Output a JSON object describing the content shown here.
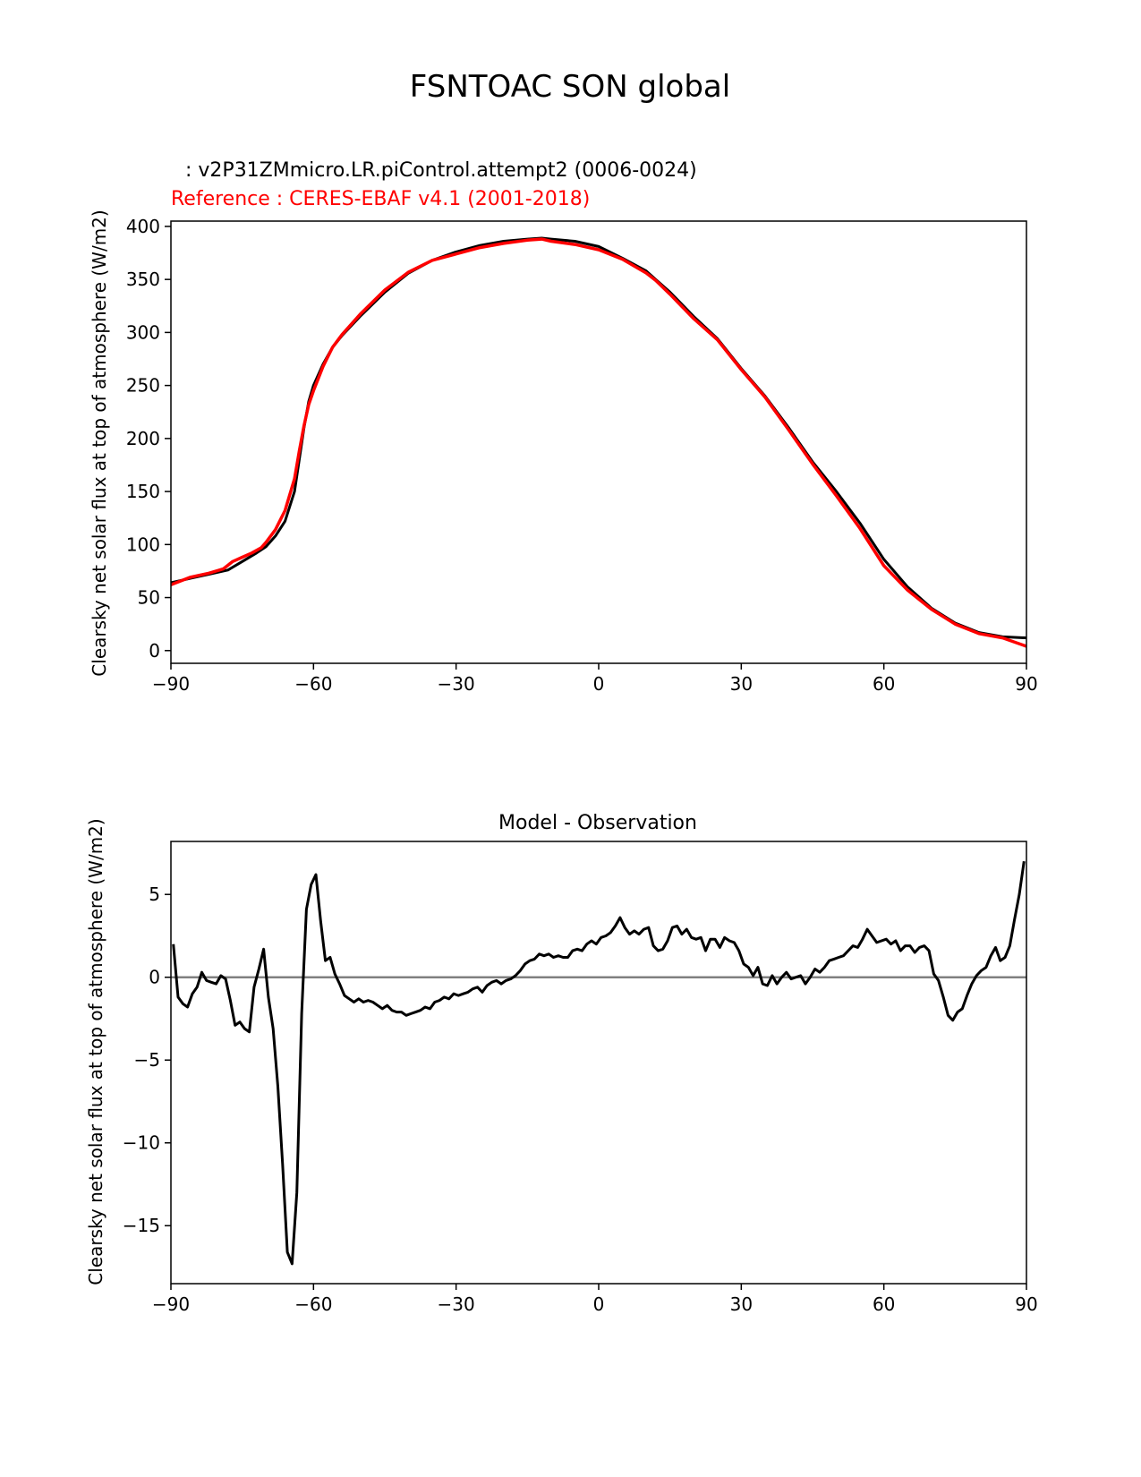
{
  "figure": {
    "title": "FSNTOAC SON global"
  },
  "chart_data": [
    {
      "type": "line",
      "test_label": ": v2P31ZMmicro.LR.piControl.attempt2 (0006-0024)",
      "reference_label": "Reference : CERES-EBAF v4.1 (2001-2018)",
      "ylabel": "Clearsky net solar flux at top of atmosphere (W/m2)",
      "xlim": [
        -90,
        90
      ],
      "ylim": [
        -12,
        405
      ],
      "xticks": [
        -90,
        -60,
        -30,
        0,
        30,
        60,
        90
      ],
      "xtick_labels": [
        "−90",
        "−60",
        "−30",
        "0",
        "30",
        "60",
        "90"
      ],
      "yticks": [
        0,
        50,
        100,
        150,
        200,
        250,
        300,
        350,
        400
      ],
      "ytick_labels": [
        "0",
        "50",
        "100",
        "150",
        "200",
        "250",
        "300",
        "350",
        "400"
      ],
      "series": [
        {
          "name": "test",
          "color": "#000000",
          "x": [
            -90,
            -86,
            -82,
            -78,
            -75,
            -72,
            -70,
            -68,
            -66,
            -64,
            -63,
            -62,
            -61,
            -60,
            -58,
            -56,
            -54,
            -50,
            -45,
            -40,
            -35,
            -30,
            -25,
            -20,
            -15,
            -12,
            -10,
            -5,
            0,
            5,
            10,
            12,
            15,
            20,
            25,
            30,
            35,
            40,
            45,
            50,
            55,
            60,
            65,
            70,
            75,
            80,
            85,
            90
          ],
          "y": [
            64,
            68,
            72,
            76,
            84,
            92,
            98,
            108,
            122,
            150,
            180,
            210,
            235,
            250,
            270,
            286,
            297,
            316,
            338,
            356,
            368,
            376,
            382,
            386,
            388,
            389,
            388,
            386,
            381,
            370,
            358,
            350,
            338,
            315,
            294,
            266,
            240,
            210,
            178,
            150,
            120,
            86,
            60,
            40,
            26,
            17,
            13,
            12
          ]
        },
        {
          "name": "reference",
          "color": "#ff0000",
          "x": [
            -90,
            -86,
            -82,
            -79,
            -77,
            -75,
            -73,
            -71,
            -70,
            -68,
            -66,
            -64,
            -63,
            -62,
            -61,
            -60,
            -58,
            -56,
            -54,
            -50,
            -45,
            -40,
            -35,
            -30,
            -25,
            -20,
            -15,
            -12,
            -10,
            -5,
            0,
            5,
            10,
            12,
            15,
            20,
            25,
            30,
            35,
            40,
            45,
            50,
            55,
            60,
            65,
            70,
            75,
            80,
            85,
            90
          ],
          "y": [
            62,
            69,
            73,
            77,
            84,
            88,
            92,
            97,
            102,
            114,
            132,
            162,
            188,
            212,
            232,
            245,
            268,
            286,
            298,
            318,
            340,
            357,
            368,
            374,
            380,
            384,
            387,
            388,
            386,
            383,
            378,
            369,
            356,
            349,
            336,
            313,
            293,
            265,
            239,
            208,
            176,
            146,
            115,
            80,
            57,
            39,
            25,
            16,
            12,
            4
          ]
        }
      ]
    },
    {
      "type": "line",
      "title": "Model - Observation",
      "ylabel": "Clearsky net solar flux at top of atmosphere (W/m2)",
      "xlim": [
        -90,
        90
      ],
      "ylim": [
        -18.5,
        8.2
      ],
      "xticks": [
        -90,
        -60,
        -30,
        0,
        30,
        60,
        90
      ],
      "xtick_labels": [
        "−90",
        "−60",
        "−30",
        "0",
        "30",
        "60",
        "90"
      ],
      "yticks": [
        -15,
        -10,
        -5,
        0,
        5
      ],
      "ytick_labels": [
        "−15",
        "−10",
        "−5",
        "0",
        "5"
      ],
      "zero_line_color": "#808080",
      "series": [
        {
          "name": "difference",
          "color": "#000000",
          "x": [
            -89.5,
            -88.5,
            -87.5,
            -86.5,
            -85.5,
            -84.5,
            -83.5,
            -82.5,
            -81.5,
            -80.5,
            -79.5,
            -78.5,
            -77.5,
            -76.5,
            -75.5,
            -74.5,
            -73.5,
            -72.5,
            -71.5,
            -70.5,
            -69.5,
            -68.5,
            -67.5,
            -66.5,
            -65.5,
            -64.5,
            -63.5,
            -62.5,
            -61.5,
            -60.5,
            -59.5,
            -58.5,
            -57.5,
            -56.5,
            -55.5,
            -54.5,
            -53.5,
            -52.5,
            -51.5,
            -50.5,
            -49.5,
            -48.5,
            -47.5,
            -46.5,
            -45.5,
            -44.5,
            -43.5,
            -42.5,
            -41.5,
            -40.5,
            -39.5,
            -38.5,
            -37.5,
            -36.5,
            -35.5,
            -34.5,
            -33.5,
            -32.5,
            -31.5,
            -30.5,
            -29.5,
            -28.5,
            -27.5,
            -26.5,
            -25.5,
            -24.5,
            -23.5,
            -22.5,
            -21.5,
            -20.5,
            -19.5,
            -18.5,
            -17.5,
            -16.5,
            -15.5,
            -14.5,
            -13.5,
            -12.5,
            -11.5,
            -10.5,
            -9.5,
            -8.5,
            -7.5,
            -6.5,
            -5.5,
            -4.5,
            -3.5,
            -2.5,
            -1.5,
            -0.5,
            0.5,
            1.5,
            2.5,
            3.5,
            4.5,
            5.5,
            6.5,
            7.5,
            8.5,
            9.5,
            10.5,
            11.5,
            12.5,
            13.5,
            14.5,
            15.5,
            16.5,
            17.5,
            18.5,
            19.5,
            20.5,
            21.5,
            22.5,
            23.5,
            24.5,
            25.5,
            26.5,
            27.5,
            28.5,
            29.5,
            30.5,
            31.5,
            32.5,
            33.5,
            34.5,
            35.5,
            36.5,
            37.5,
            38.5,
            39.5,
            40.5,
            41.5,
            42.5,
            43.5,
            44.5,
            45.5,
            46.5,
            47.5,
            48.5,
            49.5,
            50.5,
            51.5,
            52.5,
            53.5,
            54.5,
            55.5,
            56.5,
            57.5,
            58.5,
            59.5,
            60.5,
            61.5,
            62.5,
            63.5,
            64.5,
            65.5,
            66.5,
            67.5,
            68.5,
            69.5,
            70.5,
            71.5,
            72.5,
            73.5,
            74.5,
            75.5,
            76.5,
            77.5,
            78.5,
            79.5,
            80.5,
            81.5,
            82.5,
            83.5,
            84.5,
            85.5,
            86.5,
            87.5,
            88.5,
            89.5
          ],
          "y": [
            2.0,
            -1.2,
            -1.6,
            -1.8,
            -1.0,
            -0.6,
            0.3,
            -0.2,
            -0.3,
            -0.4,
            0.1,
            -0.1,
            -1.4,
            -2.9,
            -2.7,
            -3.1,
            -3.3,
            -0.6,
            0.5,
            1.7,
            -1.2,
            -3.1,
            -6.6,
            -11.3,
            -16.6,
            -17.3,
            -13.0,
            -2.2,
            4.1,
            5.6,
            6.2,
            3.4,
            1.0,
            1.2,
            0.2,
            -0.4,
            -1.1,
            -1.3,
            -1.5,
            -1.3,
            -1.5,
            -1.4,
            -1.5,
            -1.7,
            -1.9,
            -1.7,
            -2.0,
            -2.1,
            -2.1,
            -2.3,
            -2.2,
            -2.1,
            -2.0,
            -1.8,
            -1.9,
            -1.5,
            -1.4,
            -1.2,
            -1.3,
            -1.0,
            -1.1,
            -1.0,
            -0.9,
            -0.7,
            -0.6,
            -0.9,
            -0.5,
            -0.3,
            -0.2,
            -0.4,
            -0.2,
            -0.1,
            0.1,
            0.4,
            0.8,
            1.0,
            1.1,
            1.4,
            1.3,
            1.4,
            1.2,
            1.3,
            1.2,
            1.2,
            1.6,
            1.7,
            1.6,
            2.0,
            2.2,
            2.0,
            2.4,
            2.5,
            2.7,
            3.1,
            3.6,
            3.0,
            2.6,
            2.8,
            2.6,
            2.9,
            3.0,
            1.9,
            1.6,
            1.7,
            2.2,
            3.0,
            3.1,
            2.6,
            2.9,
            2.4,
            2.3,
            2.4,
            1.6,
            2.3,
            2.3,
            1.8,
            2.4,
            2.2,
            2.1,
            1.6,
            0.8,
            0.6,
            0.1,
            0.6,
            -0.4,
            -0.5,
            0.1,
            -0.4,
            0.0,
            0.3,
            -0.1,
            0.0,
            0.1,
            -0.4,
            0.0,
            0.5,
            0.3,
            0.6,
            1.0,
            1.1,
            1.2,
            1.3,
            1.6,
            1.9,
            1.8,
            2.3,
            2.9,
            2.5,
            2.1,
            2.2,
            2.3,
            2.0,
            2.2,
            1.6,
            1.9,
            1.9,
            1.5,
            1.8,
            1.9,
            1.6,
            0.2,
            -0.2,
            -1.2,
            -2.3,
            -2.6,
            -2.1,
            -1.9,
            -1.1,
            -0.4,
            0.1,
            0.4,
            0.6,
            1.3,
            1.8,
            1.0,
            1.2,
            1.9,
            3.5,
            5.0,
            7.0
          ]
        }
      ]
    }
  ]
}
